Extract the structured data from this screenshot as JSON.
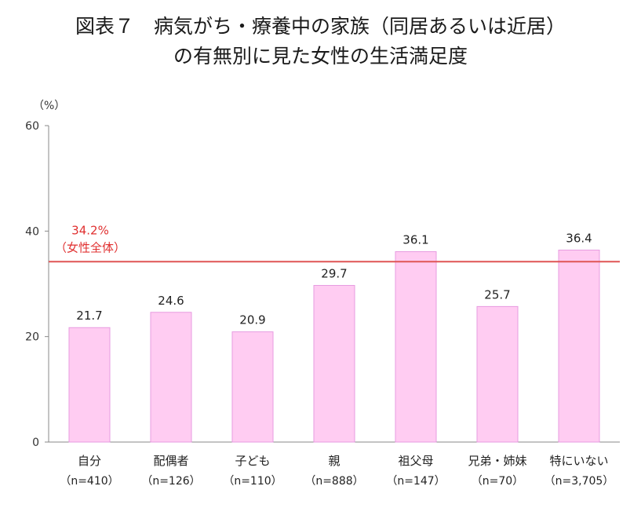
{
  "title": {
    "line1": "図表７　病気がち・療養中の家族（同居あるいは近居）",
    "line2": "の有無別に見た女性の生活満足度"
  },
  "chart_data": {
    "type": "bar",
    "ylabel": "（%）",
    "ylim": [
      0,
      60
    ],
    "yticks": [
      "0",
      "20",
      "40",
      "60"
    ],
    "grid": false,
    "categories": [
      "自分",
      "配偶者",
      "子ども",
      "親",
      "祖父母",
      "兄弟・姉妹",
      "特にいない"
    ],
    "sample_sizes": [
      "（n=410）",
      "（n=126）",
      "（n=110）",
      "（n=888）",
      "（n=147）",
      "（n=70）",
      "（n=3,705）"
    ],
    "values": [
      21.7,
      24.6,
      20.9,
      29.7,
      36.1,
      25.7,
      36.4
    ],
    "value_labels": [
      "21.7",
      "24.6",
      "20.9",
      "29.7",
      "36.1",
      "25.7",
      "36.4"
    ],
    "reference_line": {
      "value": 34.2,
      "label_value": "34.2%",
      "label_text": "（女性全体）"
    },
    "colors": {
      "bar_fill": "#ffccf2",
      "bar_stroke": "#e79be0",
      "reference": "#e05555",
      "axis": "#888888"
    }
  }
}
